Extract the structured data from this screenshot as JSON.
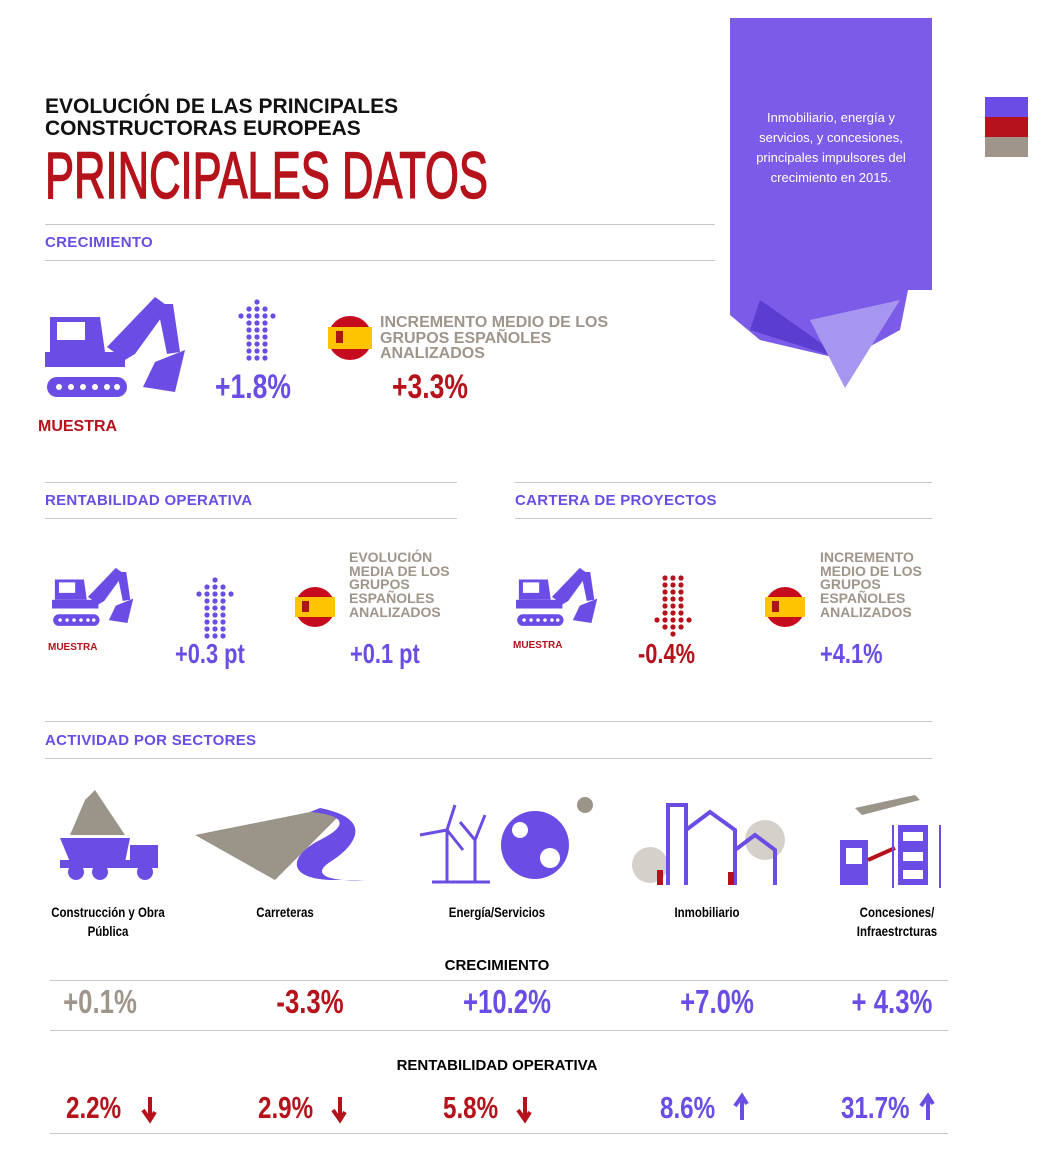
{
  "header": {
    "title_lines": [
      "EVOLUCIÓN DE LAS PRINCIPALES",
      "CONSTRUCTORAS EUROPEAS"
    ],
    "subtitle": "PRINCIPALES DATOS"
  },
  "banner": {
    "text": "Inmobiliario, energía y servicios, y concesiones, principales impulsores del crecimiento en 2015."
  },
  "crecimiento": {
    "heading": "CRECIMIENTO",
    "sample_label": "MUESTRA",
    "sample_value": "+1.8%",
    "spain_label": "INCREMENTO MEDIO DE LOS GRUPOS ESPAÑOLES ANALIZADOS",
    "spain_value": "+3.3%"
  },
  "rentabilidad": {
    "heading": "RENTABILIDAD OPERATIVA",
    "sample_label": "MUESTRA",
    "sample_value": "+0.3 pt",
    "spain_label": "EVOLUCIÓN MEDIA DE LOS GRUPOS ESPAÑOLES ANALIZADOS",
    "spain_value": "+0.1 pt"
  },
  "cartera": {
    "heading": "CARTERA DE PROYECTOS",
    "sample_label": "MUESTRA",
    "sample_value": "-0.4%",
    "spain_label": "INCREMENTO MEDIO DE LOS GRUPOS ESPAÑOLES ANALIZADOS",
    "spain_value": "+4.1%"
  },
  "sectores": {
    "heading": "ACTIVIDAD POR SECTORES",
    "growth_heading": "CRECIMIENTO",
    "margin_heading": "RENTABILIDAD OPERATIVA",
    "items": [
      {
        "name": "Construcción y Obra Pública",
        "growth": "+0.1%",
        "margin": "2.2%"
      },
      {
        "name": "Carreteras",
        "growth": "-3.3%",
        "margin": "2.9%"
      },
      {
        "name": "Energía/Servicios",
        "growth": "+10.2%",
        "margin": "5.8%"
      },
      {
        "name": "Inmobiliario",
        "growth": "+7.0%",
        "margin": "8.6%"
      },
      {
        "name": "Concesiones/ Infraestrcturas",
        "growth": "+ 4.3%",
        "margin": "31.7%"
      }
    ]
  }
}
